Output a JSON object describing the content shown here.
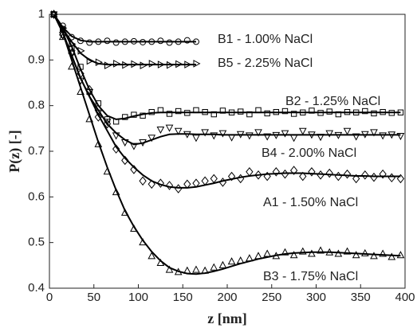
{
  "chart_data": {
    "type": "line",
    "x_label": "z [nm]",
    "y_label": "P(z) [-]",
    "xlim": [
      0,
      400
    ],
    "xticks": [
      0,
      50,
      100,
      150,
      200,
      250,
      300,
      350,
      400
    ],
    "ylim": [
      0.4,
      1
    ],
    "yticks": [
      0.4,
      0.5,
      0.6,
      0.7,
      0.8,
      0.9,
      1
    ],
    "color": "#000000",
    "series": [
      {
        "name": "B1 - 1.00% NaCl",
        "marker": "circle",
        "x": [
          5,
          15,
          25,
          35,
          45,
          55,
          65,
          75,
          85,
          95,
          105,
          115,
          125,
          135,
          145,
          155,
          165
        ],
        "values": [
          1,
          0.975,
          0.95,
          0.942,
          0.938,
          0.94,
          0.942,
          0.938,
          0.94,
          0.941,
          0.939,
          0.94,
          0.942,
          0.938,
          0.94,
          0.943,
          0.94
        ],
        "fit": [
          1,
          0.972,
          0.952,
          0.943,
          0.94,
          0.94,
          0.94,
          0.94,
          0.94,
          0.94,
          0.94,
          0.94,
          0.94,
          0.94,
          0.94,
          0.94,
          0.94
        ]
      },
      {
        "name": "B5 - 2.25% NaCl",
        "marker": "triangle-right",
        "x": [
          5,
          15,
          25,
          35,
          45,
          55,
          65,
          75,
          85,
          95,
          105,
          115,
          125,
          135,
          145,
          155,
          165
        ],
        "values": [
          1,
          0.97,
          0.935,
          0.92,
          0.898,
          0.895,
          0.888,
          0.892,
          0.889,
          0.891,
          0.888,
          0.892,
          0.89,
          0.889,
          0.891,
          0.89,
          0.892
        ],
        "fit": [
          1,
          0.968,
          0.94,
          0.915,
          0.9,
          0.892,
          0.89,
          0.89,
          0.89,
          0.89,
          0.89,
          0.89,
          0.89,
          0.89,
          0.89,
          0.89,
          0.89
        ]
      },
      {
        "name": "B2 - 1.25% NaCl",
        "marker": "square",
        "x": [
          5,
          15,
          25,
          35,
          45,
          55,
          65,
          75,
          85,
          95,
          105,
          115,
          125,
          135,
          145,
          155,
          165,
          175,
          185,
          195,
          205,
          215,
          225,
          235,
          245,
          255,
          265,
          275,
          285,
          295,
          305,
          315,
          325,
          335,
          345,
          355,
          365,
          375,
          385,
          395
        ],
        "values": [
          1,
          0.968,
          0.925,
          0.885,
          0.83,
          0.805,
          0.77,
          0.765,
          0.775,
          0.78,
          0.778,
          0.786,
          0.79,
          0.782,
          0.788,
          0.784,
          0.79,
          0.786,
          0.781,
          0.789,
          0.785,
          0.787,
          0.781,
          0.79,
          0.783,
          0.786,
          0.788,
          0.782,
          0.785,
          0.789,
          0.784,
          0.787,
          0.781,
          0.786,
          0.785,
          0.788,
          0.783,
          0.786,
          0.784,
          0.785
        ],
        "fit": [
          1,
          0.97,
          0.93,
          0.88,
          0.835,
          0.8,
          0.778,
          0.77,
          0.772,
          0.777,
          0.781,
          0.784,
          0.785,
          0.785,
          0.785,
          0.785,
          0.785,
          0.785,
          0.785,
          0.785,
          0.785,
          0.785,
          0.785,
          0.785,
          0.785,
          0.785,
          0.785,
          0.785,
          0.785,
          0.785,
          0.785,
          0.785,
          0.785,
          0.785,
          0.785,
          0.785,
          0.785,
          0.785,
          0.785,
          0.785
        ]
      },
      {
        "name": "B4 - 2.00% NaCl",
        "marker": "triangle-down",
        "x": [
          5,
          15,
          25,
          35,
          45,
          55,
          65,
          75,
          85,
          95,
          105,
          115,
          125,
          135,
          145,
          155,
          165,
          175,
          185,
          195,
          205,
          215,
          225,
          235,
          245,
          255,
          265,
          275,
          285,
          295,
          305,
          315,
          325,
          335,
          345,
          355,
          365,
          375,
          385,
          395
        ],
        "values": [
          1,
          0.955,
          0.915,
          0.855,
          0.83,
          0.785,
          0.765,
          0.735,
          0.72,
          0.712,
          0.72,
          0.73,
          0.748,
          0.752,
          0.745,
          0.738,
          0.73,
          0.742,
          0.735,
          0.74,
          0.731,
          0.738,
          0.735,
          0.742,
          0.733,
          0.736,
          0.74,
          0.73,
          0.745,
          0.737,
          0.732,
          0.74,
          0.736,
          0.745,
          0.733,
          0.738,
          0.742,
          0.735,
          0.737,
          0.734
        ],
        "fit": [
          1,
          0.96,
          0.91,
          0.86,
          0.82,
          0.79,
          0.76,
          0.74,
          0.725,
          0.715,
          0.718,
          0.725,
          0.732,
          0.737,
          0.738,
          0.738,
          0.737,
          0.737,
          0.737,
          0.736,
          0.736,
          0.736,
          0.736,
          0.736,
          0.736,
          0.736,
          0.736,
          0.736,
          0.736,
          0.736,
          0.736,
          0.736,
          0.736,
          0.736,
          0.736,
          0.736,
          0.736,
          0.736,
          0.736,
          0.736
        ]
      },
      {
        "name": "A1 - 1.50% NaCl",
        "marker": "diamond",
        "x": [
          5,
          15,
          25,
          35,
          45,
          55,
          65,
          75,
          85,
          95,
          105,
          115,
          125,
          135,
          145,
          155,
          165,
          175,
          185,
          195,
          205,
          215,
          225,
          235,
          245,
          255,
          265,
          275,
          285,
          295,
          305,
          315,
          325,
          335,
          345,
          355,
          365,
          375,
          385,
          395
        ],
        "values": [
          1,
          0.955,
          0.915,
          0.87,
          0.835,
          0.775,
          0.76,
          0.705,
          0.68,
          0.66,
          0.635,
          0.628,
          0.63,
          0.625,
          0.618,
          0.628,
          0.63,
          0.635,
          0.64,
          0.632,
          0.645,
          0.64,
          0.655,
          0.648,
          0.645,
          0.655,
          0.65,
          0.658,
          0.645,
          0.655,
          0.648,
          0.652,
          0.645,
          0.65,
          0.64,
          0.648,
          0.643,
          0.65,
          0.642,
          0.64
        ],
        "fit": [
          1,
          0.96,
          0.91,
          0.86,
          0.82,
          0.78,
          0.745,
          0.71,
          0.685,
          0.665,
          0.648,
          0.635,
          0.627,
          0.622,
          0.62,
          0.62,
          0.622,
          0.626,
          0.63,
          0.635,
          0.639,
          0.643,
          0.646,
          0.648,
          0.65,
          0.651,
          0.652,
          0.652,
          0.652,
          0.651,
          0.65,
          0.649,
          0.648,
          0.647,
          0.646,
          0.646,
          0.645,
          0.645,
          0.645,
          0.645
        ]
      },
      {
        "name": "B3 - 1.75% NaCl",
        "marker": "triangle-up",
        "x": [
          5,
          15,
          25,
          35,
          45,
          55,
          65,
          75,
          85,
          95,
          105,
          115,
          125,
          135,
          145,
          155,
          165,
          175,
          185,
          195,
          205,
          215,
          225,
          235,
          245,
          255,
          265,
          275,
          285,
          295,
          305,
          315,
          325,
          335,
          345,
          355,
          365,
          375,
          385,
          395
        ],
        "values": [
          1,
          0.95,
          0.885,
          0.83,
          0.77,
          0.715,
          0.655,
          0.61,
          0.565,
          0.53,
          0.5,
          0.47,
          0.455,
          0.44,
          0.435,
          0.438,
          0.44,
          0.438,
          0.445,
          0.45,
          0.458,
          0.46,
          0.465,
          0.47,
          0.475,
          0.47,
          0.478,
          0.472,
          0.48,
          0.475,
          0.482,
          0.478,
          0.475,
          0.48,
          0.472,
          0.476,
          0.47,
          0.475,
          0.468,
          0.472
        ],
        "fit": [
          1,
          0.96,
          0.9,
          0.84,
          0.78,
          0.72,
          0.665,
          0.615,
          0.57,
          0.535,
          0.505,
          0.48,
          0.46,
          0.445,
          0.437,
          0.432,
          0.431,
          0.433,
          0.437,
          0.442,
          0.448,
          0.454,
          0.459,
          0.464,
          0.468,
          0.472,
          0.475,
          0.477,
          0.478,
          0.479,
          0.479,
          0.479,
          0.478,
          0.477,
          0.476,
          0.475,
          0.474,
          0.473,
          0.472,
          0.471
        ]
      }
    ]
  }
}
